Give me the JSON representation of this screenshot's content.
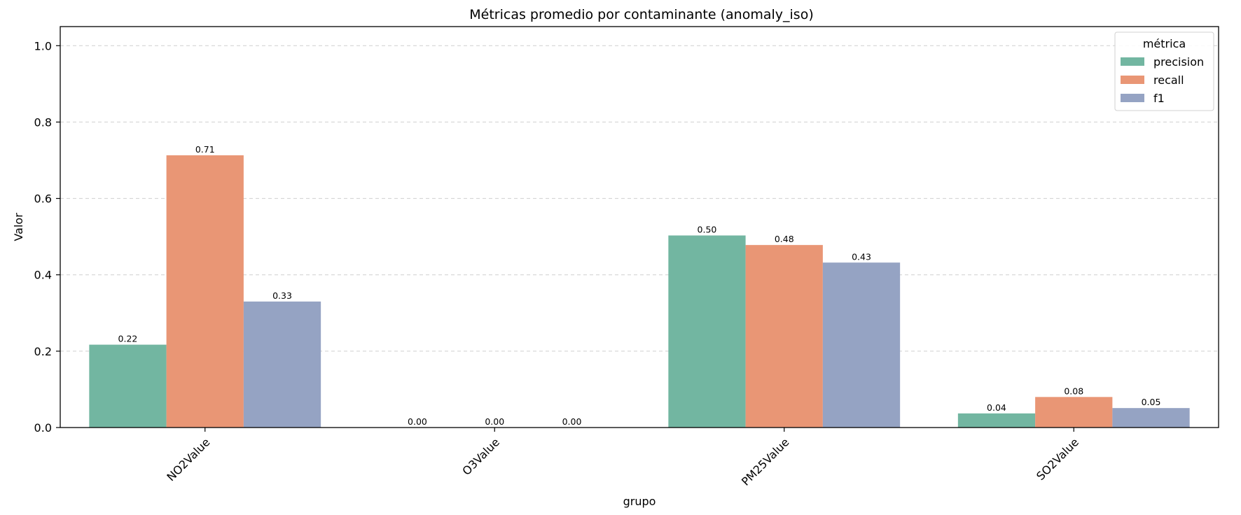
{
  "chart_data": {
    "type": "bar",
    "title": "Métricas promedio por contaminante (anomaly_iso)",
    "xlabel": "grupo",
    "ylabel": "Valor",
    "ylim": [
      0,
      1.05
    ],
    "yticks": [
      "0.0",
      "0.2",
      "0.4",
      "0.6",
      "0.8",
      "1.0"
    ],
    "grid": "y",
    "categories": [
      "NO2Value",
      "O3Value",
      "PM25Value",
      "SO2Value"
    ],
    "series": [
      {
        "name": "precision",
        "color": "#72b6a1",
        "values": [
          0.217,
          0.0,
          0.503,
          0.037
        ],
        "labels": [
          "0.22",
          "0.00",
          "0.50",
          "0.04"
        ]
      },
      {
        "name": "recall",
        "color": "#e99675",
        "values": [
          0.713,
          0.0,
          0.478,
          0.08
        ],
        "labels": [
          "0.71",
          "0.00",
          "0.48",
          "0.08"
        ]
      },
      {
        "name": "f1",
        "color": "#95a3c3",
        "values": [
          0.33,
          0.0,
          0.432,
          0.051
        ],
        "labels": [
          "0.33",
          "0.00",
          "0.43",
          "0.05"
        ]
      }
    ],
    "legend": {
      "title": "métrica",
      "placement": "top-right"
    }
  }
}
